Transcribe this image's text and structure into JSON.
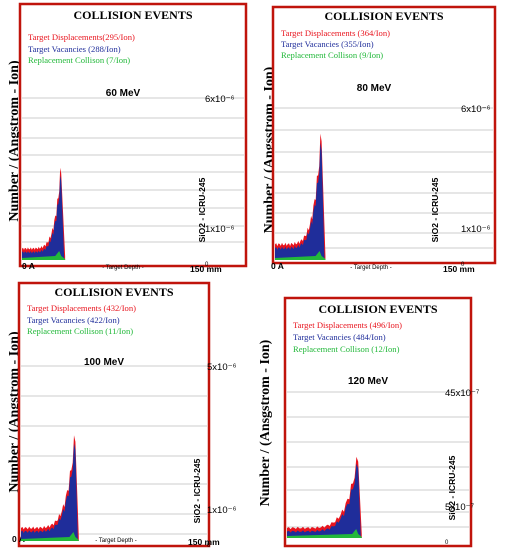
{
  "colors": {
    "frame": "#c0140c",
    "displacements": "#e8141e",
    "vacancies": "#1f2d9a",
    "replacements": "#22b83a"
  },
  "chart_data": [
    {
      "type": "area",
      "title": "COLLISION EVENTS",
      "legend": [
        {
          "label": "Target Displacements(295/Ion)",
          "color": "#e8141e"
        },
        {
          "label": "Target Vacancies (288/Ion)",
          "color": "#1f2d9a"
        },
        {
          "label": "Replacement Collison (7/Ion)",
          "color": "#22b83a"
        }
      ],
      "energy_label": "60 MeV",
      "ylabel": "Number / (Angstrom - Ion)",
      "xlabel": "- Target Depth -",
      "x_start_label": "0 A",
      "x_end_label": "150 mm",
      "material": "SiO2 - ICRU-245",
      "y_tick_top": "6x10⁻⁶",
      "y_tick_bottom": "1x10⁻⁶",
      "y_zero": "0",
      "peak_depth_fraction": 0.2,
      "peak_height_fraction": 0.62
    },
    {
      "type": "area",
      "title": "COLLISION EVENTS",
      "legend": [
        {
          "label": "Target Displacements (364/Ion)",
          "color": "#e8141e"
        },
        {
          "label": "Target Vacancies (355/Ion)",
          "color": "#1f2d9a"
        },
        {
          "label": "Replacement Collison (9/Ion)",
          "color": "#22b83a"
        }
      ],
      "energy_label": "80 MeV",
      "ylabel": "Number / (Angsstrom - Ion)",
      "xlabel": "- Target Depth -",
      "x_start_label": "0 A",
      "x_end_label": "150 mm",
      "material": "SiO2 - ICRU-245",
      "y_tick_top": "6x10⁻⁶",
      "y_tick_bottom": "1x10⁻⁶",
      "y_zero": "0",
      "peak_depth_fraction": 0.24,
      "peak_height_fraction": 0.85
    },
    {
      "type": "area",
      "title": "COLLISION EVENTS",
      "legend": [
        {
          "label": "Target Displacements (432/Ion)",
          "color": "#e8141e"
        },
        {
          "label": "Target Vacancies (422/Ion)",
          "color": "#1f2d9a"
        },
        {
          "label": "Replacement Collison (11/Ion)",
          "color": "#22b83a"
        }
      ],
      "energy_label": "100 MeV",
      "ylabel": "Number / (Angstrom - Ion)",
      "xlabel": "- Target Depth -",
      "x_start_label": "0 A",
      "x_end_label": "150 mm",
      "material": "SiO2 - ICRU-245",
      "y_tick_top": "5x10⁻⁶",
      "y_tick_bottom": "1x10⁻⁶",
      "y_zero": "0",
      "peak_depth_fraction": 0.32,
      "peak_height_fraction": 0.66
    },
    {
      "type": "area",
      "title": "COLLISION EVENTS",
      "legend": [
        {
          "label": "Target Displacements (496/Ion)",
          "color": "#e8141e"
        },
        {
          "label": "Target Vacancies (484/Ion)",
          "color": "#1f2d9a"
        },
        {
          "label": "Replacement Collison (12/Ion)",
          "color": "#22b83a"
        }
      ],
      "energy_label": "120 MeV",
      "ylabel": "Number / (Ansgstrom - Ion)",
      "xlabel": "",
      "x_start_label": "",
      "x_end_label": "",
      "material": "SiO2 - ICRU-245",
      "y_tick_top": "45x10⁻⁷",
      "y_tick_bottom": "5x10⁻⁷",
      "y_zero": "0",
      "peak_depth_fraction": 0.4,
      "peak_height_fraction": 0.56
    }
  ]
}
